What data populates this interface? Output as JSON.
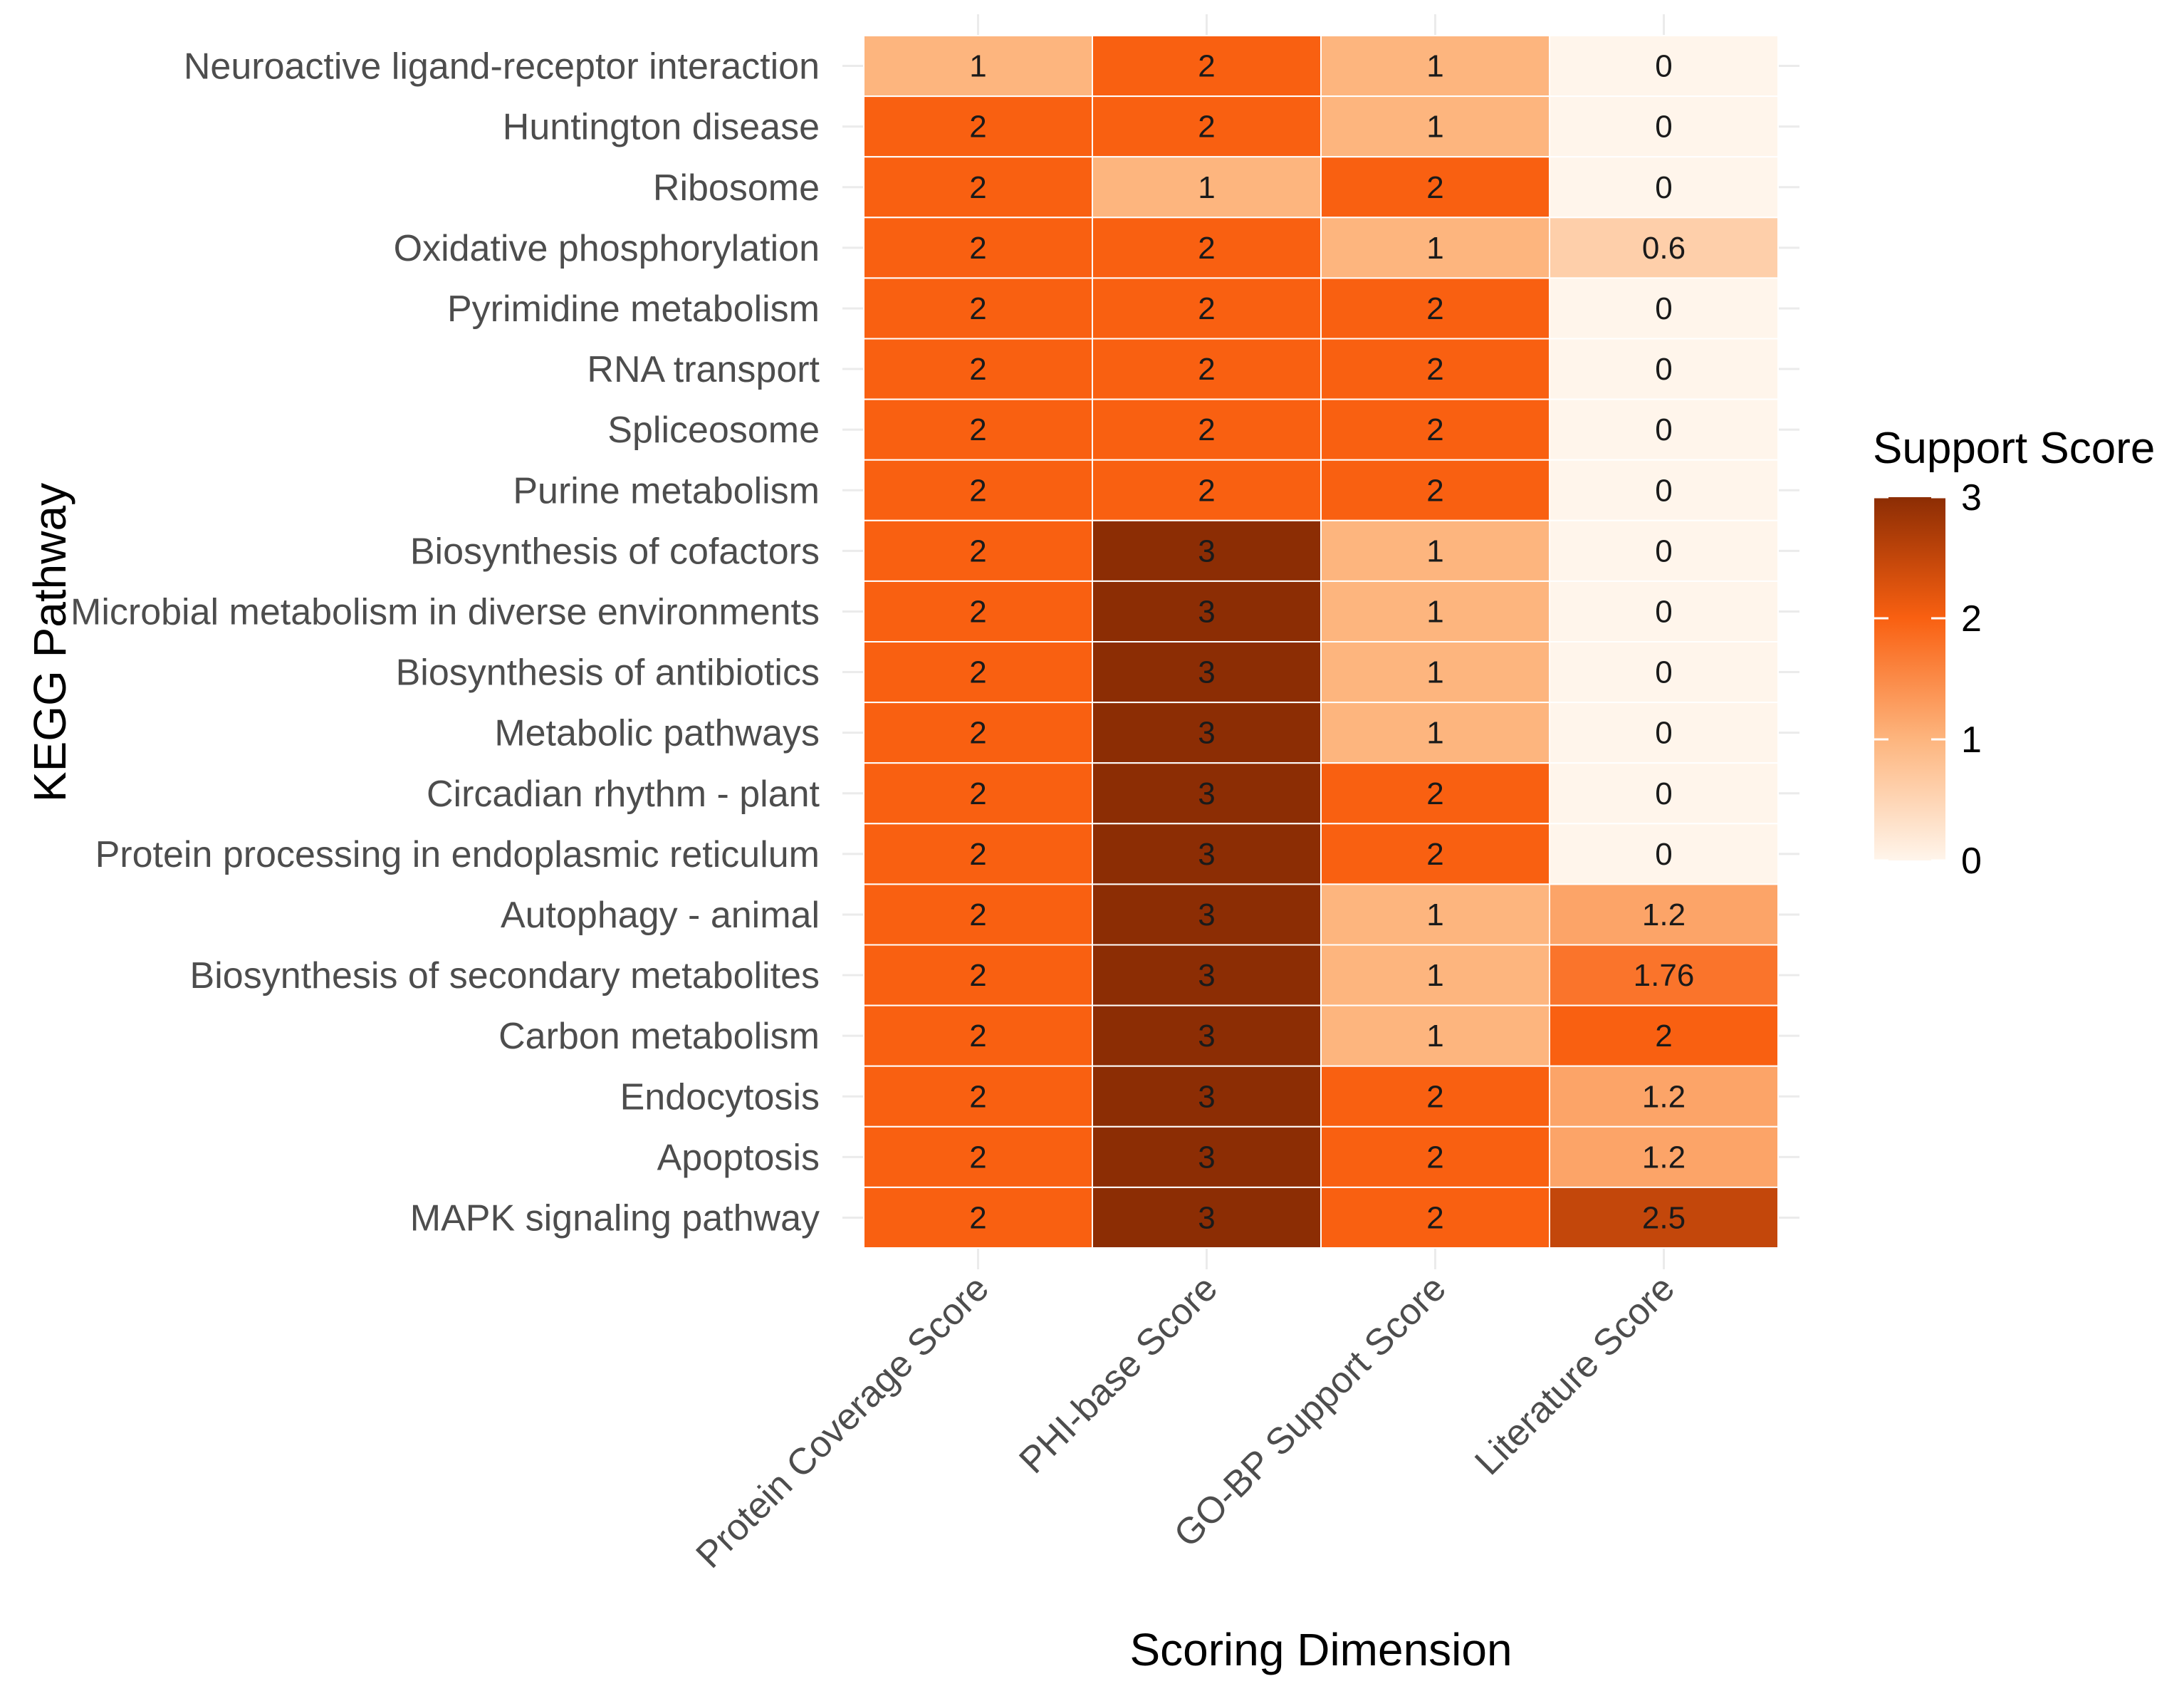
{
  "chart_data": {
    "type": "heatmap",
    "title": "",
    "xlabel": "Scoring Dimension",
    "ylabel": "KEGG Pathway",
    "columns": [
      "Protein Coverage Score",
      "PHI-base Score",
      "GO-BP Support Score",
      "Literature Score"
    ],
    "rows": [
      {
        "name": "Neuroactive ligand-receptor interaction",
        "values": [
          1,
          2,
          1,
          0
        ],
        "labels": [
          "1",
          "2",
          "1",
          "0"
        ]
      },
      {
        "name": "Huntington disease",
        "values": [
          2,
          2,
          1,
          0
        ],
        "labels": [
          "2",
          "2",
          "1",
          "0"
        ]
      },
      {
        "name": "Ribosome",
        "values": [
          2,
          1,
          2,
          0
        ],
        "labels": [
          "2",
          "1",
          "2",
          "0"
        ]
      },
      {
        "name": "Oxidative phosphorylation",
        "values": [
          2,
          2,
          1,
          0.6
        ],
        "labels": [
          "2",
          "2",
          "1",
          "0.6"
        ]
      },
      {
        "name": "Pyrimidine metabolism",
        "values": [
          2,
          2,
          2,
          0
        ],
        "labels": [
          "2",
          "2",
          "2",
          "0"
        ]
      },
      {
        "name": "RNA transport",
        "values": [
          2,
          2,
          2,
          0
        ],
        "labels": [
          "2",
          "2",
          "2",
          "0"
        ]
      },
      {
        "name": "Spliceosome",
        "values": [
          2,
          2,
          2,
          0
        ],
        "labels": [
          "2",
          "2",
          "2",
          "0"
        ]
      },
      {
        "name": "Purine metabolism",
        "values": [
          2,
          2,
          2,
          0
        ],
        "labels": [
          "2",
          "2",
          "2",
          "0"
        ]
      },
      {
        "name": "Biosynthesis of cofactors",
        "values": [
          2,
          3,
          1,
          0
        ],
        "labels": [
          "2",
          "3",
          "1",
          "0"
        ]
      },
      {
        "name": "Microbial metabolism in diverse environments",
        "values": [
          2,
          3,
          1,
          0
        ],
        "labels": [
          "2",
          "3",
          "1",
          "0"
        ]
      },
      {
        "name": "Biosynthesis of antibiotics",
        "values": [
          2,
          3,
          1,
          0
        ],
        "labels": [
          "2",
          "3",
          "1",
          "0"
        ]
      },
      {
        "name": "Metabolic pathways",
        "values": [
          2,
          3,
          1,
          0
        ],
        "labels": [
          "2",
          "3",
          "1",
          "0"
        ]
      },
      {
        "name": "Circadian rhythm - plant",
        "values": [
          2,
          3,
          2,
          0
        ],
        "labels": [
          "2",
          "3",
          "2",
          "0"
        ]
      },
      {
        "name": "Protein processing in endoplasmic reticulum",
        "values": [
          2,
          3,
          2,
          0
        ],
        "labels": [
          "2",
          "3",
          "2",
          "0"
        ]
      },
      {
        "name": "Autophagy - animal",
        "values": [
          2,
          3,
          1,
          1.2
        ],
        "labels": [
          "2",
          "3",
          "1",
          "1.2"
        ]
      },
      {
        "name": "Biosynthesis of secondary metabolites",
        "values": [
          2,
          3,
          1,
          1.76
        ],
        "labels": [
          "2",
          "3",
          "1",
          "1.76"
        ]
      },
      {
        "name": "Carbon metabolism",
        "values": [
          2,
          3,
          1,
          2
        ],
        "labels": [
          "2",
          "3",
          "1",
          "2"
        ]
      },
      {
        "name": "Endocytosis",
        "values": [
          2,
          3,
          2,
          1.2
        ],
        "labels": [
          "2",
          "3",
          "2",
          "1.2"
        ]
      },
      {
        "name": "Apoptosis",
        "values": [
          2,
          3,
          2,
          1.2
        ],
        "labels": [
          "2",
          "3",
          "2",
          "1.2"
        ]
      },
      {
        "name": "MAPK signaling pathway",
        "values": [
          2,
          3,
          2,
          2.5
        ],
        "labels": [
          "2",
          "3",
          "2",
          "2.5"
        ]
      }
    ],
    "color_scale": {
      "title": "Support Score",
      "min": 0,
      "max": 3,
      "ticks": [
        "0",
        "1",
        "2",
        "3"
      ],
      "stops": [
        {
          "value": 0,
          "color": "#fff5eb"
        },
        {
          "value": 1,
          "color": "#fdb57e"
        },
        {
          "value": 2,
          "color": "#f96011"
        },
        {
          "value": 3,
          "color": "#8c2d04"
        }
      ]
    },
    "grid": true,
    "legend_position": "right"
  }
}
